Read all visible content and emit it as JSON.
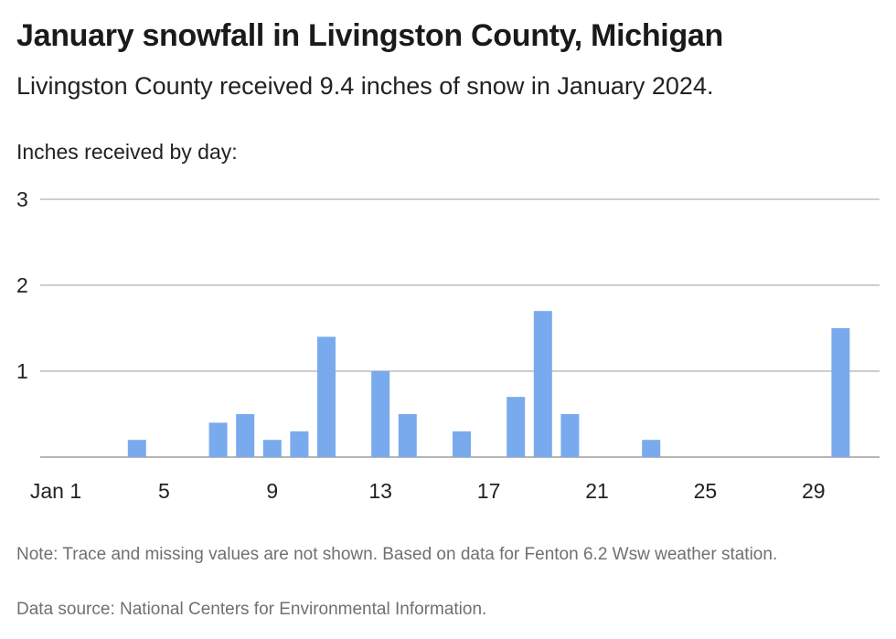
{
  "title": "January snowfall in Livingston County, Michigan",
  "subtitle": "Livingston County received 9.4 inches of snow in January 2024.",
  "note": "Note: Trace and missing values are not shown. Based on data for Fenton 6.2 Wsw weather station.",
  "source": "Data source: National Centers for Environmental Information.",
  "chart_data": {
    "type": "bar",
    "title": "January snowfall in Livingston County, Michigan",
    "ylabel": "Inches received by day:",
    "xlabel": "",
    "ylim": [
      0,
      3
    ],
    "yticks": [
      1,
      2,
      3
    ],
    "xlim": [
      1,
      31
    ],
    "xticks": [
      {
        "day": 1,
        "label": "Jan 1"
      },
      {
        "day": 5,
        "label": "5"
      },
      {
        "day": 9,
        "label": "9"
      },
      {
        "day": 13,
        "label": "13"
      },
      {
        "day": 17,
        "label": "17"
      },
      {
        "day": 21,
        "label": "21"
      },
      {
        "day": 25,
        "label": "25"
      },
      {
        "day": 29,
        "label": "29"
      }
    ],
    "grid": true,
    "bar_color": "#7aaaee",
    "x": [
      4,
      7,
      8,
      9,
      10,
      11,
      13,
      14,
      16,
      18,
      19,
      20,
      23,
      30
    ],
    "values": [
      0.2,
      0.4,
      0.5,
      0.2,
      0.3,
      1.4,
      1.0,
      0.5,
      0.3,
      0.7,
      1.7,
      0.5,
      0.2,
      1.5
    ]
  }
}
